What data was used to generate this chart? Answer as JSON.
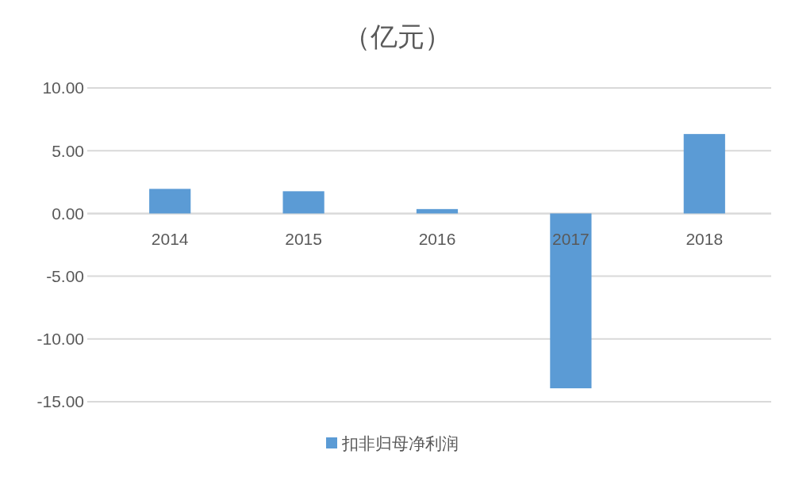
{
  "chart_data": {
    "type": "bar",
    "title": "（亿元）",
    "categories": [
      "2014",
      "2015",
      "2016",
      "2017",
      "2018"
    ],
    "series": [
      {
        "name": "扣非归母净利润",
        "color": "#5b9bd5",
        "values": [
          1.96,
          1.77,
          0.35,
          -13.93,
          6.33
        ]
      }
    ],
    "ylim": [
      -15,
      10
    ],
    "yticks": [
      {
        "value": -15,
        "label": "-15.00"
      },
      {
        "value": -10,
        "label": "-10.00"
      },
      {
        "value": -5,
        "label": "-5.00"
      },
      {
        "value": 0,
        "label": "0.00"
      },
      {
        "value": 5,
        "label": "5.00"
      },
      {
        "value": 10,
        "label": "10.00"
      }
    ],
    "grid": "y",
    "legend": "bottom"
  }
}
